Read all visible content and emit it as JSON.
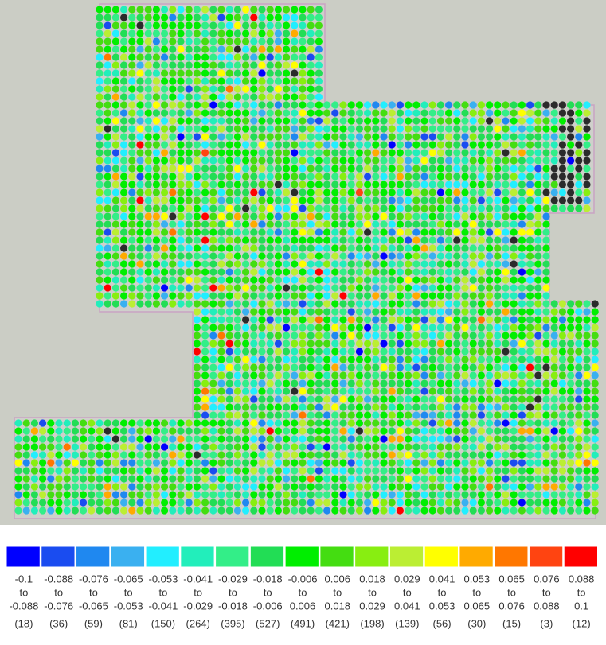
{
  "legend": {
    "classes": [
      {
        "from": "-0.1",
        "to_word": "to",
        "to": "-0.088",
        "count": "(18)",
        "color": "#0000ff"
      },
      {
        "from": "-0.088",
        "to_word": "to",
        "to": "-0.076",
        "count": "(36)",
        "color": "#1a4cf0"
      },
      {
        "from": "-0.076",
        "to_word": "to",
        "to": "-0.065",
        "count": "(59)",
        "color": "#1f88f0"
      },
      {
        "from": "-0.065",
        "to_word": "to",
        "to": "-0.053",
        "count": "(81)",
        "color": "#3ab0f0"
      },
      {
        "from": "-0.053",
        "to_word": "to",
        "to": "-0.041",
        "count": "(150)",
        "color": "#22eeff"
      },
      {
        "from": "-0.041",
        "to_word": "to",
        "to": "-0.029",
        "count": "(264)",
        "color": "#22eebb"
      },
      {
        "from": "-0.029",
        "to_word": "to",
        "to": "-0.018",
        "count": "(395)",
        "color": "#33ee88"
      },
      {
        "from": "-0.018",
        "to_word": "to",
        "to": "-0.006",
        "count": "(527)",
        "color": "#22dd55"
      },
      {
        "from": "-0.006",
        "to_word": "to",
        "to": "0.006",
        "count": "(491)",
        "color": "#00ee00"
      },
      {
        "from": "0.006",
        "to_word": "to",
        "to": "0.018",
        "count": "(421)",
        "color": "#44dd11"
      },
      {
        "from": "0.018",
        "to_word": "to",
        "to": "0.029",
        "count": "(198)",
        "color": "#88ee11"
      },
      {
        "from": "0.029",
        "to_word": "to",
        "to": "0.041",
        "count": "(139)",
        "color": "#bbee33"
      },
      {
        "from": "0.041",
        "to_word": "to",
        "to": "0.053",
        "count": "(56)",
        "color": "#ffff00"
      },
      {
        "from": "0.053",
        "to_word": "to",
        "to": "0.065",
        "count": "(30)",
        "color": "#ffaa00"
      },
      {
        "from": "0.065",
        "to_word": "to",
        "to": "0.076",
        "count": "(15)",
        "color": "#ff7700"
      },
      {
        "from": "0.076",
        "to_word": "to",
        "to": "0.088",
        "count": "(3)",
        "color": "#ff4411"
      },
      {
        "from": "0.088",
        "to_word": "to",
        "to": "0.1",
        "count": "(12)",
        "color": "#ff0000"
      }
    ]
  }
}
